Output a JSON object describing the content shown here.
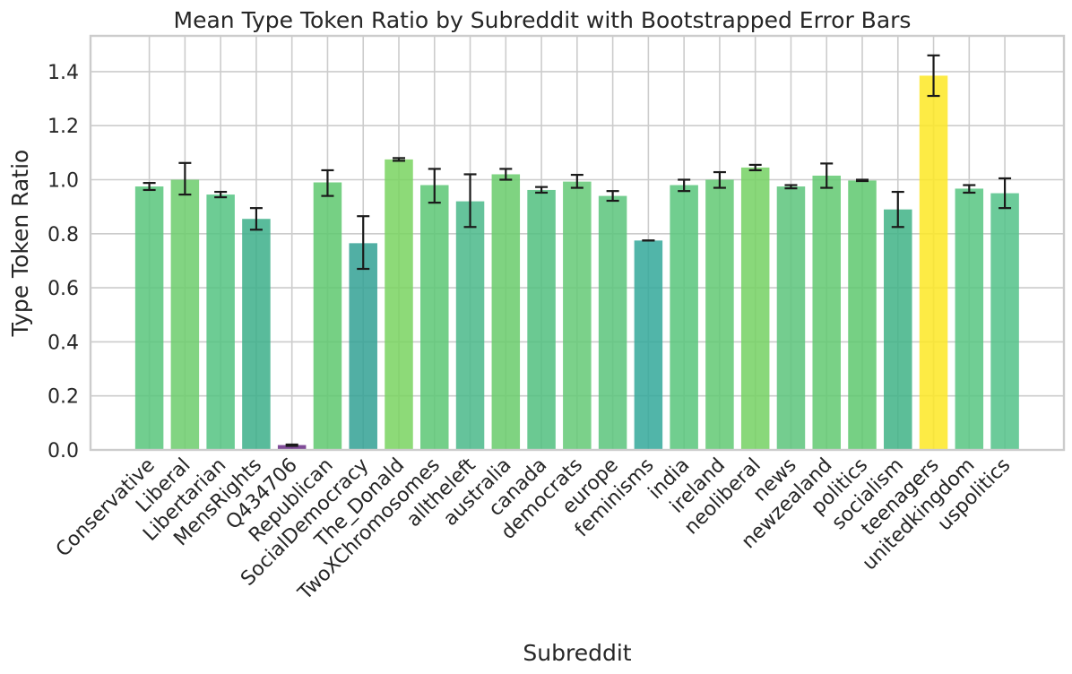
{
  "chart_data": {
    "type": "bar",
    "title": "Mean Type Token Ratio by Subreddit with Bootstrapped Error Bars",
    "xlabel": "Subreddit",
    "ylabel": "Type Token Ratio",
    "ylim": [
      0,
      1.53
    ],
    "yticks": [
      "0.0",
      "0.2",
      "0.4",
      "0.6",
      "0.8",
      "1.0",
      "1.2",
      "1.4"
    ],
    "grid": true,
    "colormap": "viridis",
    "categories": [
      "Conservative",
      "Liberal",
      "Libertarian",
      "MensRights",
      "Q434706",
      "Republican",
      "SocialDemocracy",
      "The_Donald",
      "TwoXChromosomes",
      "alltheleft",
      "australia",
      "canada",
      "democrats",
      "europe",
      "feminisms",
      "india",
      "ireland",
      "neoliberal",
      "news",
      "newzealand",
      "politics",
      "socialism",
      "teenagers",
      "unitedkingdom",
      "uspolitics"
    ],
    "values": [
      0.975,
      1.0,
      0.945,
      0.855,
      0.018,
      0.99,
      0.765,
      1.075,
      0.98,
      0.92,
      1.02,
      0.962,
      0.993,
      0.94,
      0.775,
      0.98,
      1.0,
      1.045,
      0.975,
      1.015,
      0.997,
      0.89,
      1.385,
      0.967,
      0.95
    ],
    "errors_low": [
      0.962,
      0.945,
      0.935,
      0.815,
      0.015,
      0.94,
      0.67,
      1.07,
      0.915,
      0.825,
      1.0,
      0.952,
      0.97,
      0.922,
      0.775,
      0.958,
      0.97,
      1.035,
      0.968,
      0.97,
      0.995,
      0.825,
      1.31,
      0.952,
      0.895
    ],
    "errors_high": [
      0.988,
      1.062,
      0.955,
      0.895,
      0.02,
      1.035,
      0.865,
      1.08,
      1.04,
      1.02,
      1.04,
      0.973,
      1.018,
      0.958,
      0.775,
      1.0,
      1.028,
      1.055,
      0.98,
      1.06,
      1.0,
      0.955,
      1.46,
      0.98,
      1.005
    ],
    "colors": [
      "#58c67b",
      "#6ccd6c",
      "#53c381",
      "#3caf8a",
      "#6a2d86",
      "#5ec86f",
      "#33a194",
      "#79d460",
      "#5cc774",
      "#4ab989",
      "#68cb6b",
      "#51c07f",
      "#64c975",
      "#5ac47b",
      "#33a89a",
      "#58c67b",
      "#62c973",
      "#74d163",
      "#5cc47b",
      "#62c971",
      "#5ec86f",
      "#3fb386",
      "#fde725",
      "#57c581",
      "#52c288"
    ]
  }
}
